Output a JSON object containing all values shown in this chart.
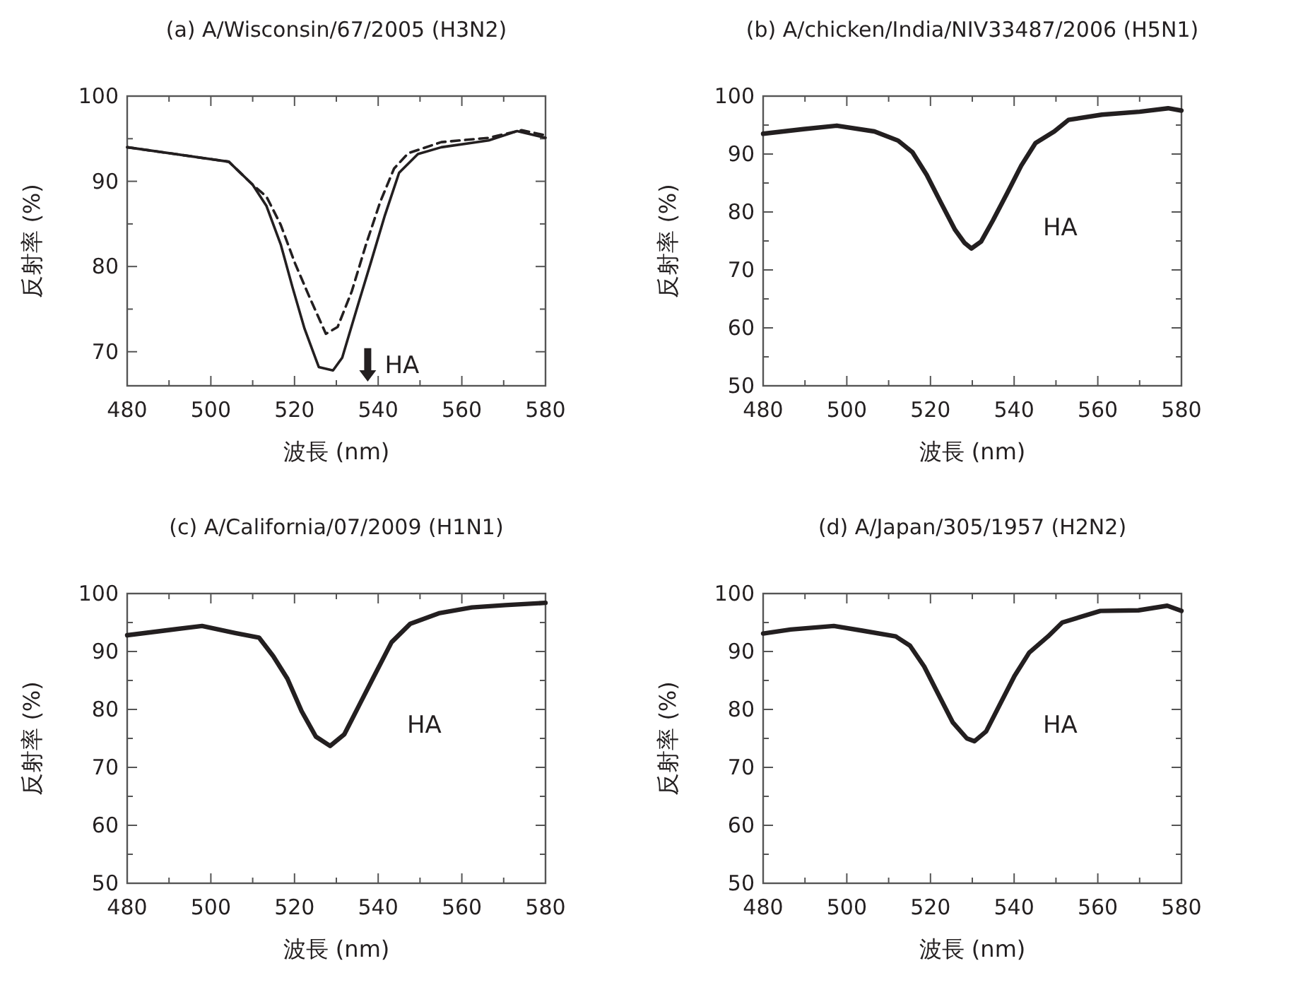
{
  "chart_data": [
    {
      "type": "line",
      "title": "(a) A/Wisconsin/67/2005 (H3N2)",
      "xlabel": "波長 (nm)",
      "ylabel": "反射率 (%)",
      "xlim": [
        480,
        580
      ],
      "ylim": [
        66,
        100
      ],
      "xticks": [
        480,
        {
          "value": 490,
          "label": null
        },
        500,
        {
          "value": 510,
          "label": null
        },
        520,
        {
          "value": 530,
          "label": null
        },
        540,
        {
          "value": 550,
          "label": null
        },
        560,
        {
          "value": 570,
          "label": null
        },
        580
      ],
      "yticks": [
        70,
        {
          "value": 75,
          "label": null
        },
        80,
        {
          "value": 85,
          "label": null
        },
        90,
        {
          "value": 95,
          "label": null
        },
        100
      ],
      "annotations": [
        "HA"
      ],
      "series": [
        {
          "color": "#231f20",
          "line_style": "solid",
          "x": [
            480,
            504.3,
            510,
            513.3,
            516.7,
            519.5,
            522.4,
            525.8,
            529.2,
            531.4,
            534.8,
            538.2,
            541.6,
            545,
            549.5,
            555.1,
            566.4,
            573.2,
            580
          ],
          "values": [
            94.0,
            92.3,
            89.6,
            87.1,
            82.6,
            77.6,
            72.7,
            68.2,
            67.8,
            69.3,
            74.9,
            80.4,
            86.0,
            91.0,
            93.2,
            94.0,
            94.8,
            95.9,
            95.1
          ]
        },
        {
          "color": "#231f20",
          "line_style": "dashed",
          "x": [
            480,
            504.3,
            510,
            513.3,
            516.7,
            520.1,
            523.5,
            527.5,
            530.3,
            533.7,
            537.1,
            540.5,
            543.8,
            547.2,
            555.1,
            566.4,
            574.3,
            580
          ],
          "values": [
            94.0,
            92.3,
            89.6,
            88.2,
            84.9,
            80.4,
            76.5,
            72.1,
            72.9,
            77.1,
            82.6,
            87.6,
            91.5,
            93.3,
            94.6,
            95.1,
            96.0,
            95.4
          ]
        }
      ]
    },
    {
      "type": "line",
      "title": "(b) A/chicken/India/NIV33487/2006 (H5N1)",
      "xlabel": "波長 (nm)",
      "ylabel": "反射率 (%)",
      "xlim": [
        480,
        580
      ],
      "ylim": [
        50,
        100
      ],
      "xticks": [
        480,
        {
          "value": 490,
          "label": null
        },
        500,
        {
          "value": 510,
          "label": null
        },
        520,
        {
          "value": 530,
          "label": null
        },
        540,
        {
          "value": 550,
          "label": null
        },
        560,
        {
          "value": 570,
          "label": null
        },
        580
      ],
      "yticks": [
        50,
        {
          "value": 55,
          "label": null
        },
        60,
        {
          "value": 65,
          "label": null
        },
        70,
        {
          "value": 75,
          "label": null
        },
        80,
        {
          "value": 85,
          "label": null
        },
        90,
        {
          "value": 95,
          "label": null
        },
        100
      ],
      "annotations": [
        "HA"
      ],
      "series": [
        {
          "color": "#231f20",
          "line_style": "solid",
          "x": [
            480,
            489.6,
            497.6,
            506.6,
            512.3,
            515.7,
            519.1,
            522.5,
            525.9,
            528.1,
            529.8,
            532.1,
            534.9,
            538.3,
            541.7,
            545.1,
            549.6,
            553,
            561,
            570,
            576.8,
            580
          ],
          "values": [
            93.5,
            94.3,
            94.9,
            93.9,
            92.3,
            90.3,
            86.4,
            81.6,
            76.9,
            74.7,
            73.7,
            74.9,
            78.5,
            83.2,
            88.0,
            91.9,
            93.9,
            95.9,
            96.8,
            97.3,
            97.9,
            97.5
          ]
        }
      ]
    },
    {
      "type": "line",
      "title": "(c) A/California/07/2009 (H1N1)",
      "xlabel": "波長 (nm)",
      "ylabel": "反射率 (%)",
      "xlim": [
        480,
        580
      ],
      "ylim": [
        50,
        100
      ],
      "xticks": [
        480,
        {
          "value": 490,
          "label": null
        },
        500,
        {
          "value": 510,
          "label": null
        },
        520,
        {
          "value": 530,
          "label": null
        },
        540,
        {
          "value": 550,
          "label": null
        },
        560,
        {
          "value": 570,
          "label": null
        },
        580
      ],
      "yticks": [
        50,
        {
          "value": 55,
          "label": null
        },
        60,
        {
          "value": 65,
          "label": null
        },
        70,
        {
          "value": 75,
          "label": null
        },
        80,
        {
          "value": 85,
          "label": null
        },
        90,
        {
          "value": 95,
          "label": null
        },
        100
      ],
      "annotations": [
        "HA"
      ],
      "series": [
        {
          "color": "#231f20",
          "line_style": "solid",
          "x": [
            480,
            488.8,
            497.9,
            505.8,
            511.5,
            514.9,
            518.3,
            521.7,
            525.1,
            528.5,
            531.9,
            535.3,
            538.7,
            543.2,
            547.7,
            554.5,
            562.4,
            570.4,
            580
          ],
          "values": [
            92.8,
            93.6,
            94.4,
            93.2,
            92.4,
            89.2,
            85.3,
            79.7,
            75.3,
            73.7,
            75.7,
            80.5,
            85.3,
            91.6,
            94.8,
            96.6,
            97.6,
            98.0,
            98.4
          ]
        }
      ]
    },
    {
      "type": "line",
      "title": "(d) A/Japan/305/1957 (H2N2)",
      "xlabel": "波長 (nm)",
      "ylabel": "反射率 (%)",
      "xlim": [
        480,
        580
      ],
      "ylim": [
        50,
        100
      ],
      "xticks": [
        480,
        {
          "value": 490,
          "label": null
        },
        500,
        {
          "value": 510,
          "label": null
        },
        520,
        {
          "value": 530,
          "label": null
        },
        540,
        {
          "value": 550,
          "label": null
        },
        560,
        {
          "value": 570,
          "label": null
        },
        580
      ],
      "yticks": [
        50,
        {
          "value": 55,
          "label": null
        },
        60,
        {
          "value": 65,
          "label": null
        },
        70,
        {
          "value": 75,
          "label": null
        },
        80,
        {
          "value": 85,
          "label": null
        },
        90,
        {
          "value": 95,
          "label": null
        },
        100
      ],
      "annotations": [
        "HA"
      ],
      "series": [
        {
          "color": "#231f20",
          "line_style": "solid",
          "x": [
            480,
            486.6,
            496.9,
            503.7,
            511.7,
            515.1,
            518.5,
            521.9,
            525.3,
            528.7,
            530.5,
            533.3,
            536.7,
            540.1,
            543.6,
            548.1,
            551.5,
            560.6,
            569.7,
            576.6,
            580
          ],
          "values": [
            93.1,
            93.8,
            94.4,
            93.6,
            92.6,
            91.0,
            87.4,
            82.6,
            77.8,
            75.0,
            74.5,
            76.2,
            81.0,
            85.8,
            89.8,
            92.6,
            95.0,
            97.0,
            97.1,
            97.9,
            97.0
          ]
        }
      ]
    }
  ]
}
